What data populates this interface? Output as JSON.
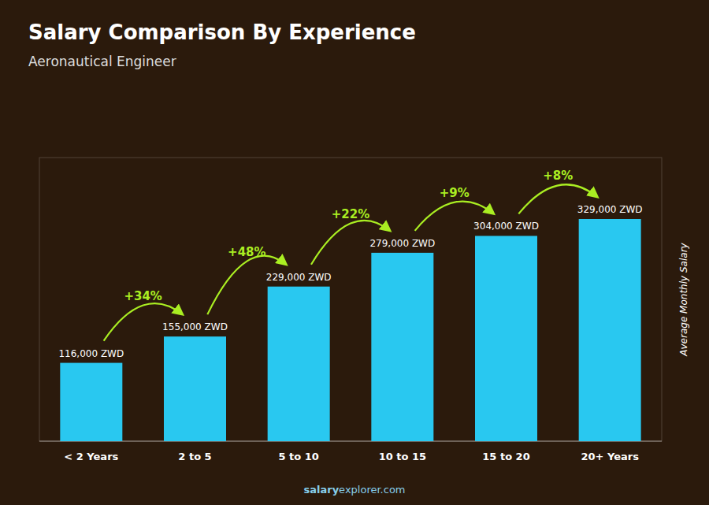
{
  "chart_data": {
    "type": "bar",
    "title": "Salary Comparison By Experience",
    "subtitle": "Aeronautical Engineer",
    "ylabel": "Average Monthly Salary",
    "categories": [
      "< 2 Years",
      "2 to 5",
      "5 to 10",
      "10 to 15",
      "15 to 20",
      "20+ Years"
    ],
    "values": [
      116000,
      155000,
      229000,
      279000,
      304000,
      329000
    ],
    "value_labels": [
      "116,000 ZWD",
      "155,000 ZWD",
      "229,000 ZWD",
      "279,000 ZWD",
      "304,000 ZWD",
      "329,000 ZWD"
    ],
    "data_labels": true,
    "color": "#29C8F0",
    "ylim": [
      0,
      420000
    ],
    "tick_labels": "x",
    "grid": false,
    "annotations": [
      {
        "text": "+34%",
        "color": "#AAEE22"
      },
      {
        "text": "+48%",
        "color": "#AAEE22"
      },
      {
        "text": "+22%",
        "color": "#AAEE22"
      },
      {
        "text": "+9%",
        "color": "#AAEE22"
      },
      {
        "text": "+8%",
        "color": "#AAEE22"
      }
    ],
    "footer": [
      "salary",
      "explorer.com"
    ]
  }
}
